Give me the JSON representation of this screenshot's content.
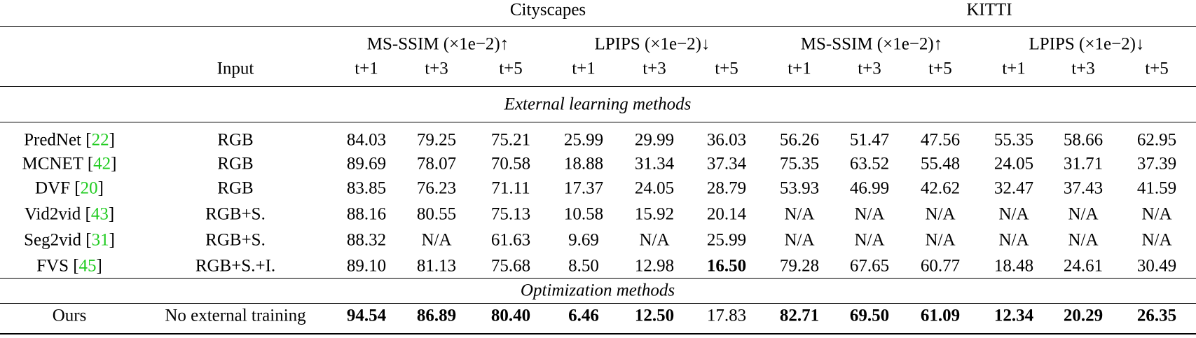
{
  "table": {
    "groups": [
      "Cityscapes",
      "KITTI"
    ],
    "metrics": [
      "MS-SSIM (×1e−2)↑",
      "LPIPS (×1e−2)↓",
      "MS-SSIM (×1e−2)↑",
      "LPIPS (×1e−2)↓"
    ],
    "input_header": "Input",
    "steps": [
      "t+1",
      "t+3",
      "t+5",
      "t+1",
      "t+3",
      "t+5",
      "t+1",
      "t+3",
      "t+5",
      "t+1",
      "t+3",
      "t+5"
    ],
    "sections": [
      {
        "title": "External learning methods",
        "rows": [
          {
            "method": [
              "PredNet [",
              "22",
              "]"
            ],
            "input": "RGB",
            "values": [
              "84.03",
              "79.25",
              "75.21",
              "25.99",
              "29.99",
              "36.03",
              "56.26",
              "51.47",
              "47.56",
              "55.35",
              "58.66",
              "62.95"
            ]
          },
          {
            "method": [
              "MCNET [",
              "42",
              "]"
            ],
            "input": "RGB",
            "values": [
              "89.69",
              "78.07",
              "70.58",
              "18.88",
              "31.34",
              "37.34",
              "75.35",
              "63.52",
              "55.48",
              "24.05",
              "31.71",
              "37.39"
            ]
          },
          {
            "method": [
              "DVF [",
              "20",
              "]"
            ],
            "input": "RGB",
            "values": [
              "83.85",
              "76.23",
              "71.11",
              "17.37",
              "24.05",
              "28.79",
              "53.93",
              "46.99",
              "42.62",
              "32.47",
              "37.43",
              "41.59"
            ]
          },
          {
            "method": [
              "Vid2vid [",
              "43",
              "]"
            ],
            "input": "RGB+S.",
            "values": [
              "88.16",
              "80.55",
              "75.13",
              "10.58",
              "15.92",
              "20.14",
              "N/A",
              "N/A",
              "N/A",
              "N/A",
              "N/A",
              "N/A"
            ]
          },
          {
            "method": [
              "Seg2vid [",
              "31",
              "]"
            ],
            "input": "RGB+S.",
            "values": [
              "88.32",
              "N/A",
              "61.63",
              "9.69",
              "N/A",
              "25.99",
              "N/A",
              "N/A",
              "N/A",
              "N/A",
              "N/A",
              "N/A"
            ]
          },
          {
            "method": [
              "FVS [",
              "45",
              "]"
            ],
            "input": "RGB+S.+I.",
            "values": [
              "89.10",
              "81.13",
              "75.68",
              "8.50",
              "12.98",
              {
                "text": "16.50",
                "bold": true
              },
              "79.28",
              "67.65",
              "60.77",
              "18.48",
              "24.61",
              "30.49"
            ]
          }
        ]
      },
      {
        "title": "Optimization methods",
        "rows": [
          {
            "method": [
              "Ours"
            ],
            "input": "No external training",
            "values": [
              {
                "text": "94.54",
                "bold": true
              },
              {
                "text": "86.89",
                "bold": true
              },
              {
                "text": "80.40",
                "bold": true
              },
              {
                "text": "6.46",
                "bold": true
              },
              {
                "text": "12.50",
                "bold": true
              },
              "17.83",
              {
                "text": "82.71",
                "bold": true
              },
              {
                "text": "69.50",
                "bold": true
              },
              {
                "text": "61.09",
                "bold": true
              },
              {
                "text": "12.34",
                "bold": true
              },
              {
                "text": "20.29",
                "bold": true
              },
              {
                "text": "26.35",
                "bold": true
              }
            ]
          }
        ]
      }
    ]
  }
}
